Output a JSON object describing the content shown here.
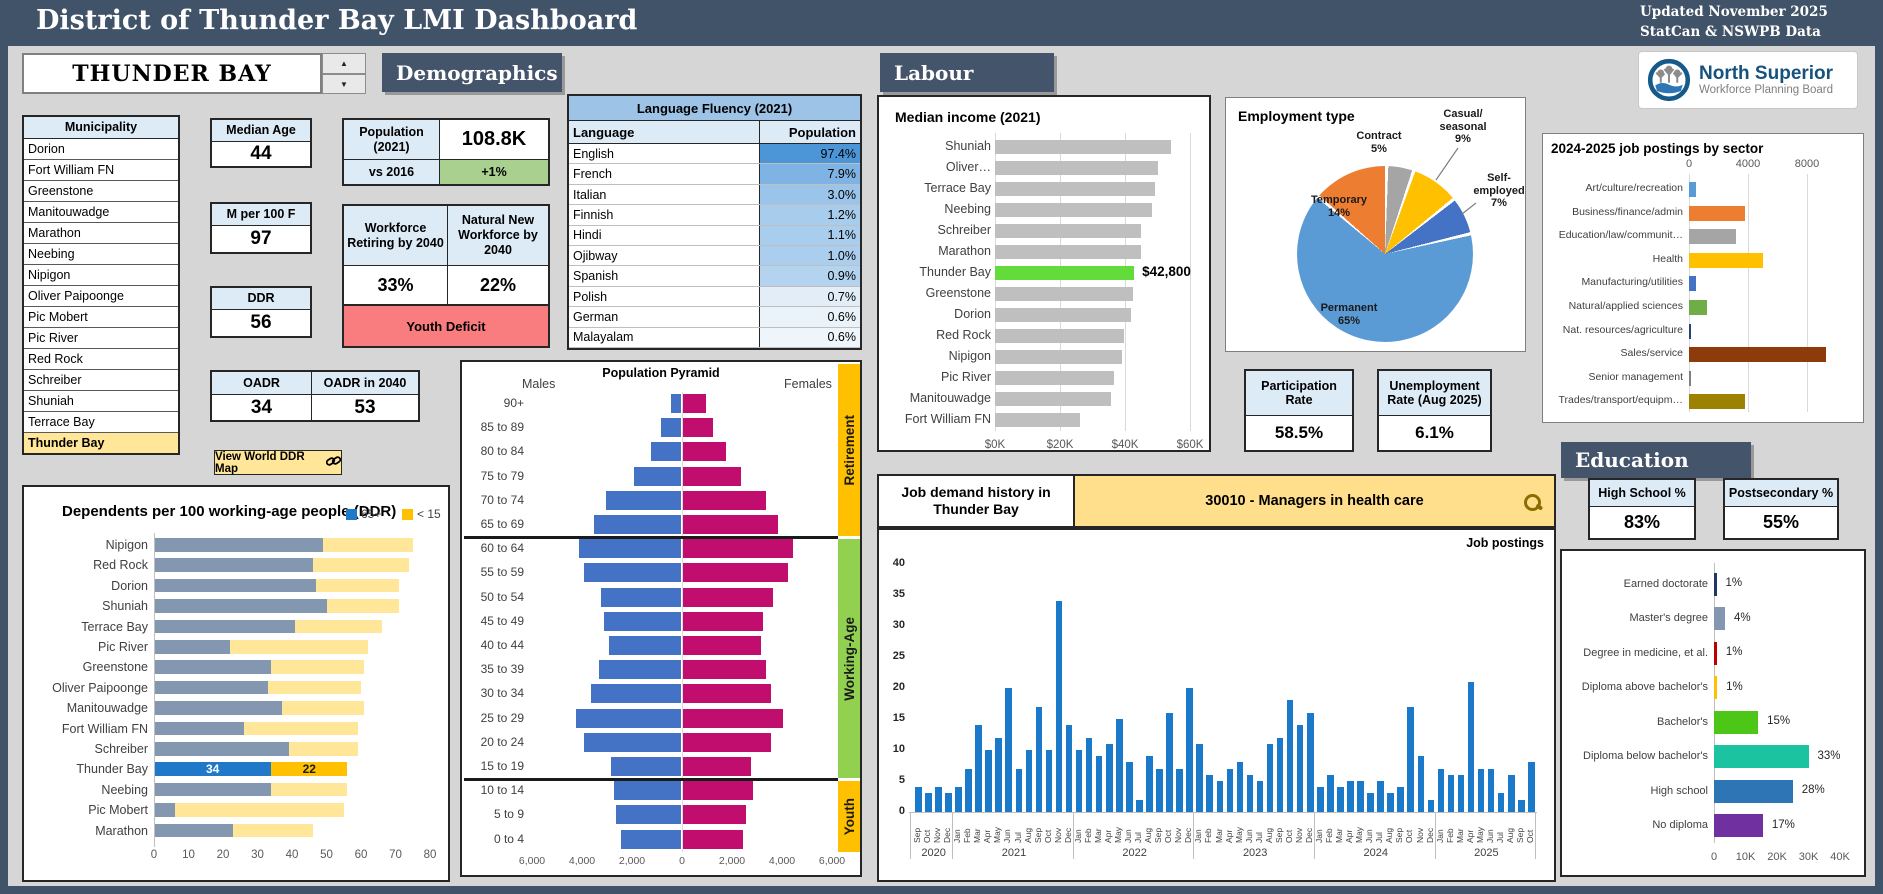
{
  "header": {
    "title": "District of Thunder Bay LMI Dashboard",
    "updated": "Updated November 2025",
    "source": "StatCan & NSWPB Data"
  },
  "logo": {
    "name": "North Superior",
    "subtitle": "Workforce Planning Board"
  },
  "selector": {
    "value": "THUNDER BAY"
  },
  "section_headers": {
    "demographics": "Demographics",
    "labour": "Labour",
    "education": "Education"
  },
  "municipalities": {
    "header": "Municipality",
    "selected": "Thunder Bay",
    "rows": [
      "Dorion",
      "Fort William FN",
      "Greenstone",
      "Manitouwadge",
      "Marathon",
      "Neebing",
      "Nipigon",
      "Oliver Paipoonge",
      "Pic Mobert",
      "Pic River",
      "Red Rock",
      "Schreiber",
      "Shuniah",
      "Terrace Bay",
      "Thunder Bay"
    ]
  },
  "cards": {
    "median_age": {
      "label": "Median Age",
      "value": "44"
    },
    "m_per_100f": {
      "label": "M per 100 F",
      "value": "97"
    },
    "ddr": {
      "label": "DDR",
      "value": "56"
    },
    "oadr": {
      "label": "OADR",
      "value": "34"
    },
    "oadr_2040": {
      "label": "OADR in 2040",
      "value": "53"
    },
    "population": {
      "label": "Population (2021)",
      "value": "108.8K",
      "vs_label": "vs 2016",
      "vs_value": "+1%"
    },
    "workforce_retiring": {
      "label": "Workforce Retiring by 2040",
      "value": "33%"
    },
    "natural_new": {
      "label": "Natural New Workforce by 2040",
      "value": "22%"
    },
    "youth_deficit": "Youth Deficit",
    "participation": {
      "label": "Participation Rate",
      "value": "58.5%"
    },
    "unemployment": {
      "label": "Unemployment Rate (Aug 2025)",
      "value": "6.1%"
    },
    "high_school": {
      "label": "High School %",
      "value": "83%"
    },
    "postsecondary": {
      "label": "Postsecondary %",
      "value": "55%"
    }
  },
  "ddr_map_button": "View World DDR Map",
  "language_table": {
    "title": "Language Fluency (2021)",
    "col_language": "Language",
    "col_population": "Population",
    "rows": [
      {
        "language": "English",
        "value": "97.4%",
        "shade": "#4C96D8"
      },
      {
        "language": "French",
        "value": "7.9%",
        "shade": "#7FB3E3"
      },
      {
        "language": "Italian",
        "value": "3.0%",
        "shade": "#9AC4EA"
      },
      {
        "language": "Finnish",
        "value": "1.2%",
        "shade": "#A7CCEC"
      },
      {
        "language": "Hindi",
        "value": "1.1%",
        "shade": "#A9CDED"
      },
      {
        "language": "Ojibway",
        "value": "1.0%",
        "shade": "#ABCEEE"
      },
      {
        "language": "Spanish",
        "value": "0.9%",
        "shade": "#B3D3EF"
      },
      {
        "language": "Polish",
        "value": "0.7%",
        "shade": "#E2EDF8"
      },
      {
        "language": "German",
        "value": "0.6%",
        "shade": "#EBF3FA"
      },
      {
        "language": "Malayalam",
        "value": "0.6%",
        "shade": "#EEF5FB"
      }
    ]
  },
  "job_demand": {
    "title": "Job demand history in Thunder Bay",
    "search_value": "30010 - Managers in health care",
    "corner_label": "Job postings"
  },
  "chart_data": [
    {
      "id": "population_pyramid",
      "type": "bar",
      "variant": "pyramid",
      "title": "Population Pyramid",
      "left_label": "Males",
      "right_label": "Females",
      "age_groups": [
        "90+",
        "85 to 89",
        "80 to 84",
        "75 to 79",
        "70 to 74",
        "65 to 69",
        "60 to 64",
        "55 to 59",
        "50 to 54",
        "45 to 49",
        "40 to 44",
        "35 to 39",
        "30 to 34",
        "25 to 29",
        "20 to 24",
        "15 to 19",
        "10 to 14",
        "5 to 9",
        "0 to 4"
      ],
      "males": [
        400,
        800,
        1200,
        1900,
        3000,
        3500,
        4100,
        3900,
        3200,
        3100,
        2900,
        3300,
        3600,
        4200,
        3900,
        2800,
        2700,
        2600,
        2400
      ],
      "females": [
        900,
        1200,
        1700,
        2300,
        3300,
        3800,
        4400,
        4200,
        3600,
        3200,
        3100,
        3300,
        3500,
        4000,
        3500,
        2700,
        2800,
        2500,
        2400
      ],
      "xlim": [
        0,
        6000
      ],
      "x_ticks": [
        "6,000",
        "4,000",
        "2,000",
        "0",
        "2,000",
        "4,000",
        "6,000"
      ],
      "bands": [
        {
          "label": "Retirement",
          "rows": 6,
          "color": "#FFC000"
        },
        {
          "label": "Working-Age",
          "rows": 10,
          "color": "#92D050"
        },
        {
          "label": "Youth",
          "rows": 3,
          "color": "#FFC000"
        }
      ],
      "male_color": "#4472C4",
      "female_color": "#C00D6E"
    },
    {
      "id": "ddr",
      "type": "bar",
      "variant": "stacked-horizontal",
      "title": "Dependents per 100 working-age people (DDR)",
      "legend": [
        {
          "label": "65+",
          "color": "#1F78C8"
        },
        {
          "label": "< 15",
          "color": "#FFC000"
        }
      ],
      "categories": [
        "Nipigon",
        "Red Rock",
        "Dorion",
        "Shuniah",
        "Terrace Bay",
        "Pic River",
        "Greenstone",
        "Oliver Paipoonge",
        "Manitouwadge",
        "Fort William FN",
        "Schreiber",
        "Thunder Bay",
        "Neebing",
        "Pic Mobert",
        "Marathon"
      ],
      "series": [
        {
          "name": "65+",
          "values": [
            49,
            46,
            47,
            50,
            41,
            22,
            34,
            33,
            37,
            26,
            39,
            34,
            34,
            6,
            23
          ]
        },
        {
          "name": "< 15",
          "values": [
            26,
            28,
            24,
            21,
            25,
            40,
            27,
            27,
            24,
            33,
            20,
            22,
            22,
            49,
            23
          ]
        }
      ],
      "muted_colors": [
        "#8497B0",
        "#FFE699"
      ],
      "highlight": "Thunder Bay",
      "highlight_colors": [
        "#1F78C8",
        "#FFC000"
      ],
      "highlight_labels": [
        "34",
        "22"
      ],
      "xlim": [
        0,
        80
      ],
      "x_ticks": [
        0,
        10,
        20,
        30,
        40,
        50,
        60,
        70,
        80
      ]
    },
    {
      "id": "median_income",
      "type": "bar",
      "variant": "horizontal",
      "title": "Median income (2021)",
      "categories": [
        "Shuniah",
        "Oliver…",
        "Terrace Bay",
        "Neebing",
        "Schreiber",
        "Marathon",
        "Thunder Bay",
        "Greenstone",
        "Dorion",
        "Red Rock",
        "Nipigon",
        "Pic River",
        "Manitouwadge",
        "Fort William FN"
      ],
      "values": [
        54000,
        50000,
        49200,
        48200,
        45000,
        44800,
        42800,
        42500,
        41800,
        39700,
        39200,
        36700,
        35800,
        26100
      ],
      "bar_color": "#BFBFBF",
      "highlight": "Thunder Bay",
      "highlight_color": "#63DB3B",
      "highlight_label": "$42,800",
      "xlim": [
        0,
        60000
      ],
      "x_ticks": [
        "$0K",
        "$20K",
        "$40K",
        "$60K"
      ],
      "x_tick_values": [
        0,
        20000,
        40000,
        60000
      ]
    },
    {
      "id": "employment_type",
      "type": "pie",
      "title": "Employment type",
      "slices": [
        {
          "label": "Contract",
          "pct": 5,
          "color": "#A5A5A5"
        },
        {
          "label": "Casual/seasonal",
          "pct": 9,
          "color": "#FFC000"
        },
        {
          "label": "Self-employed",
          "pct": 7,
          "color": "#4472C4"
        },
        {
          "label": "Permanent",
          "pct": 65,
          "color": "#5B9BD5"
        },
        {
          "label": "Temporary",
          "pct": 14,
          "color": "#ED7D31"
        }
      ]
    },
    {
      "id": "job_postings_sector",
      "type": "bar",
      "variant": "horizontal",
      "title": "2024-2025 job postings by sector",
      "categories": [
        "Art/culture/recreation",
        "Business/finance/admin",
        "Education/law/communit…",
        "Health",
        "Manufacturing/utilities",
        "Natural/applied sciences",
        "Nat. resources/agriculture",
        "Sales/service",
        "Senior management",
        "Trades/transport/equipm…"
      ],
      "values": [
        450,
        3800,
        3200,
        5000,
        500,
        1200,
        100,
        9300,
        50,
        3800
      ],
      "colors": [
        "#5B9BD5",
        "#ED7D31",
        "#A5A5A5",
        "#FFC000",
        "#4472C4",
        "#70AD47",
        "#264478",
        "#8E3B0B",
        "#7F7F7F",
        "#9C8200"
      ],
      "xlim": [
        0,
        8800
      ],
      "x_ticks": [
        "0",
        "4000",
        "8000"
      ],
      "x_tick_values": [
        0,
        4000,
        8000
      ]
    },
    {
      "id": "job_demand_history",
      "type": "bar",
      "variant": "vertical-time",
      "bar_color": "#1B79C9",
      "ylim": [
        0,
        40
      ],
      "y_ticks": [
        0,
        5,
        10,
        15,
        20,
        25,
        30,
        35,
        40
      ],
      "groups": [
        {
          "year": "2020",
          "months": [
            "Sep",
            "Oct",
            "Nov",
            "Dec"
          ],
          "values": [
            4,
            3,
            4,
            3
          ]
        },
        {
          "year": "2021",
          "months": [
            "Jan",
            "Feb",
            "Mar",
            "Apr",
            "May",
            "Jun",
            "Jul",
            "Aug",
            "Sep",
            "Oct",
            "Nov",
            "Dec"
          ],
          "values": [
            4,
            7,
            14,
            10,
            12,
            20,
            7,
            10,
            17,
            10,
            34,
            14
          ]
        },
        {
          "year": "2022",
          "months": [
            "Jan",
            "Feb",
            "Mar",
            "Apr",
            "May",
            "Jun",
            "Jul",
            "Aug",
            "Sep",
            "Oct",
            "Nov",
            "Dec"
          ],
          "values": [
            10,
            12,
            9,
            11,
            15,
            8,
            2,
            9,
            7,
            16,
            7,
            20
          ]
        },
        {
          "year": "2023",
          "months": [
            "Jan",
            "Feb",
            "Mar",
            "Apr",
            "May",
            "Jun",
            "Jul",
            "Aug",
            "Sep",
            "Oct",
            "Nov",
            "Dec"
          ],
          "values": [
            11,
            6,
            5,
            7,
            8,
            6,
            5,
            11,
            12,
            18,
            14,
            16
          ]
        },
        {
          "year": "2024",
          "months": [
            "Jan",
            "Feb",
            "Mar",
            "Apr",
            "May",
            "Jun",
            "Jul",
            "Aug",
            "Sep",
            "Oct",
            "Nov",
            "Dec"
          ],
          "values": [
            4,
            6,
            4,
            5,
            5,
            3,
            5,
            3,
            4,
            17,
            9,
            2
          ]
        },
        {
          "year": "2025",
          "months": [
            "Jan",
            "Feb",
            "Mar",
            "Apr",
            "May",
            "Jun",
            "Jul",
            "Aug",
            "Sep",
            "Oct"
          ],
          "values": [
            7,
            6,
            6,
            21,
            7,
            7,
            3,
            6,
            2,
            8
          ]
        }
      ]
    },
    {
      "id": "educational_attainment",
      "type": "bar",
      "variant": "horizontal",
      "categories": [
        "Earned doctorate",
        "Master's degree",
        "Degree in medicine, et al.",
        "Diploma above bachelor's",
        "Bachelor's",
        "Diploma below bachelor's",
        "High school",
        "No diploma"
      ],
      "values": [
        800,
        3500,
        900,
        1000,
        14000,
        30000,
        25000,
        15500
      ],
      "labels": [
        "1%",
        "4%",
        "1%",
        "1%",
        "15%",
        "33%",
        "28%",
        "17%"
      ],
      "colors": [
        "#203864",
        "#8497B0",
        "#C00000",
        "#FFC000",
        "#4CC717",
        "#1CC3A0",
        "#2E75B6",
        "#7030A0"
      ],
      "xlim": [
        0,
        40000
      ],
      "x_ticks": [
        "0",
        "10K",
        "20K",
        "30K",
        "40K"
      ],
      "x_tick_values": [
        0,
        10000,
        20000,
        30000,
        40000
      ]
    }
  ]
}
